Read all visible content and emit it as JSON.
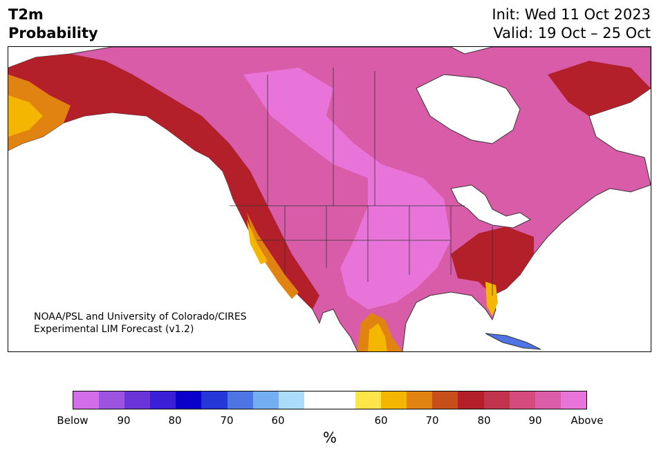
{
  "header": {
    "title_line1": "T2m",
    "title_line2": "Probability",
    "init": "Init: Wed 11 Oct 2023",
    "valid": "Valid: 19 Oct – 25 Oct"
  },
  "credit": {
    "line1": "NOAA/PSL and University of Colorado/CIRES",
    "line2": "Experimental LIM Forecast (v1.2)"
  },
  "colorbar": {
    "colors": [
      "#d46ee8",
      "#9b53e0",
      "#6a35d8",
      "#3a1fd6",
      "#0a00cc",
      "#2438d8",
      "#4f74e6",
      "#74aef2",
      "#acdcfc",
      "#ffffff",
      "#ffffff",
      "#ffe44a",
      "#f4b600",
      "#e08310",
      "#c94f1a",
      "#b3202a",
      "#c2344e",
      "#d44c7e",
      "#dd5ea8",
      "#e874d9"
    ],
    "ticks": [
      "Below",
      "90",
      "80",
      "70",
      "60",
      "60",
      "70",
      "80",
      "90",
      "Above"
    ],
    "unit": "%"
  },
  "map": {
    "land_color": "#d85ca8",
    "ocean_color": "#ffffff",
    "border_color": "#333333"
  }
}
